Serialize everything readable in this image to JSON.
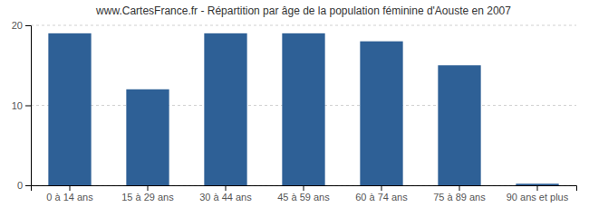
{
  "chart_data": {
    "type": "bar",
    "title": "www.CartesFrance.fr - Répartition par âge de la population féminine d'Aouste en 2007",
    "categories": [
      "0 à 14 ans",
      "15 à 29 ans",
      "30 à 44 ans",
      "45 à 59 ans",
      "60 à 74 ans",
      "75 à 89 ans",
      "90 ans et plus"
    ],
    "values": [
      19,
      12,
      19,
      19,
      18,
      15,
      0.2
    ],
    "color": "#2e6096",
    "ylim": [
      0,
      20
    ],
    "yticks": [
      0,
      10,
      20
    ],
    "grid": true
  }
}
